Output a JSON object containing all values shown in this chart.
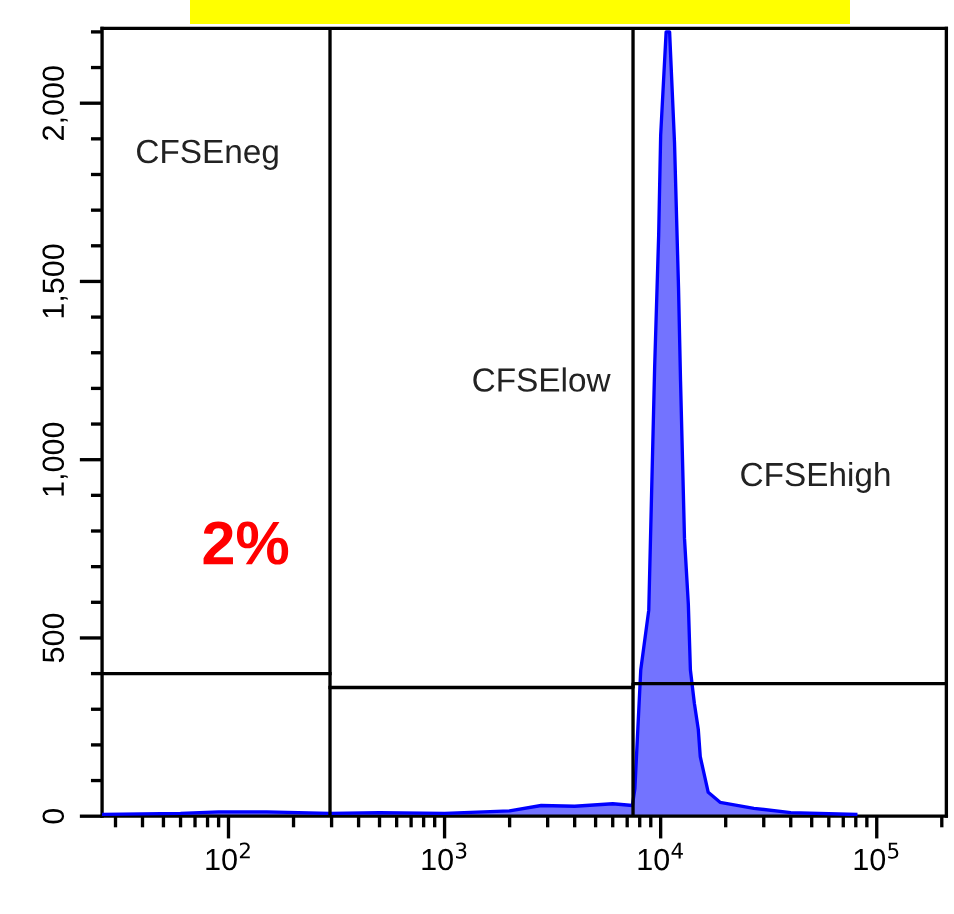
{
  "chart_data": {
    "type": "area",
    "log": "x",
    "series": [
      {
        "color": "#0000ff",
        "x": [
          26,
          60,
          90,
          150,
          295,
          500,
          1000,
          2000,
          2800,
          4000,
          6000,
          7400,
          7600,
          8090,
          8810,
          9380,
          9790,
          10000,
          10600,
          11000,
          11590,
          12100,
          12360,
          12890,
          13430,
          13730,
          14320,
          14930,
          15250,
          16600,
          18830,
          27000,
          40000,
          80000
        ],
        "values": [
          5,
          8,
          12,
          12,
          8,
          10,
          8,
          15,
          30,
          28,
          35,
          30,
          78,
          411,
          578,
          1260,
          1630,
          1910,
          2200,
          2200,
          1890,
          1480,
          1220,
          780,
          595,
          410,
          317,
          244,
          167,
          67,
          39,
          22,
          10,
          5
        ]
      },
      {
        "type": "line",
        "color": "#000000",
        "x": [
          26,
          295
        ],
        "values": [
          400,
          400
        ]
      },
      {
        "type": "line",
        "color": "#000000",
        "x": [
          295,
          7450,
          7450,
          210000
        ],
        "values": [
          361,
          361,
          372,
          372
        ]
      }
    ],
    "xlim": [
      26,
      210000
    ],
    "xticks": [
      {
        "value": 100,
        "label": "10$^{2}$"
      },
      {
        "value": 1000,
        "label": "10$^{3}$"
      },
      {
        "value": 10000,
        "label": "10$^{4}$"
      },
      {
        "value": 100000,
        "label": "10$^{5}$"
      }
    ],
    "ylim": [
      0,
      2210
    ],
    "yticks": [
      0,
      500,
      {
        "value": 1000,
        "label": "1,000"
      },
      {
        "value": 1500,
        "label": "1,500"
      },
      {
        "value": 2000,
        "label": "2,000"
      }
    ],
    "ref_lines": [
      {
        "axis": "x",
        "value": 295,
        "color": "#000000"
      },
      {
        "axis": "x",
        "value": 7450,
        "color": "#000000"
      }
    ],
    "annotations": [
      "CFSEneg",
      "CFSElow",
      "CFSEhigh",
      "2%"
    ],
    "grid": false
  }
}
